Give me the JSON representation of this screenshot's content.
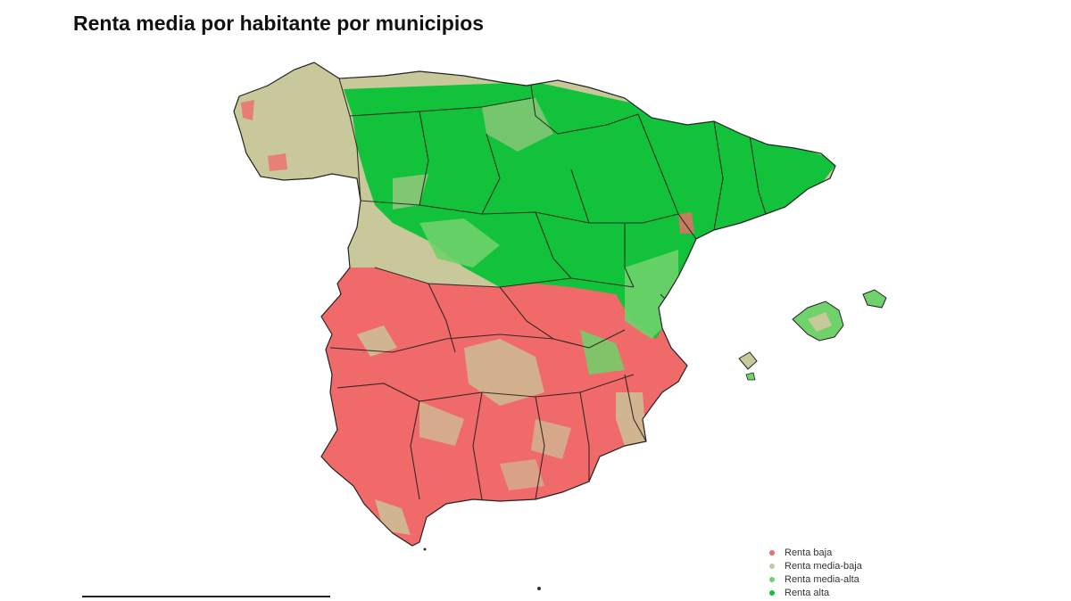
{
  "title": "Renta media por habitante por municipios",
  "legend": [
    {
      "label": "Renta baja",
      "color": "#f06a6a"
    },
    {
      "label": "Renta media-baja",
      "color": "#c9c89a"
    },
    {
      "label": "Renta media-alta",
      "color": "#6fd26a"
    },
    {
      "label": "Renta alta",
      "color": "#12c23a"
    }
  ],
  "map": {
    "region": "Spain (peninsula + Balearic Islands)",
    "pattern": "north and northeast mostly high income, center mixed, south and southwest mostly low income",
    "border_color": "#1a1a1a"
  }
}
